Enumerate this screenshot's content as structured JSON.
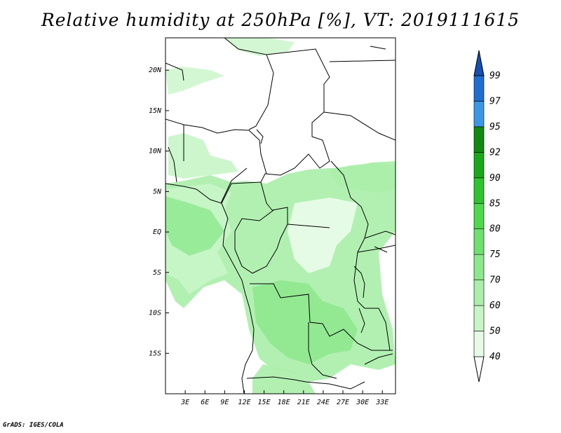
{
  "title": "Relative humidity at 250hPa [%], VT: 2019111615",
  "credit": "GrADS: IGES/COLA",
  "map": {
    "lon_range": [
      0,
      35
    ],
    "lat_range": [
      -20,
      24
    ],
    "x_ticks": [
      "3E",
      "6E",
      "9E",
      "12E",
      "15E",
      "18E",
      "21E",
      "24E",
      "27E",
      "30E",
      "33E"
    ],
    "y_ticks": [
      "20N",
      "15N",
      "10N",
      "5N",
      "EQ",
      "5S",
      "10S",
      "15S"
    ]
  },
  "colorbar": {
    "levels": [
      "40",
      "50",
      "60",
      "70",
      "75",
      "80",
      "85",
      "90",
      "92",
      "95",
      "97",
      "99"
    ],
    "colors": [
      "#ffffff",
      "#e6fbe6",
      "#c8f5c8",
      "#aaeeaa",
      "#8ce88c",
      "#6ee06e",
      "#4ed84e",
      "#2ec42e",
      "#1aa81a",
      "#108a10",
      "#3c96e6",
      "#1e6ed2",
      "#1450b4"
    ]
  }
}
